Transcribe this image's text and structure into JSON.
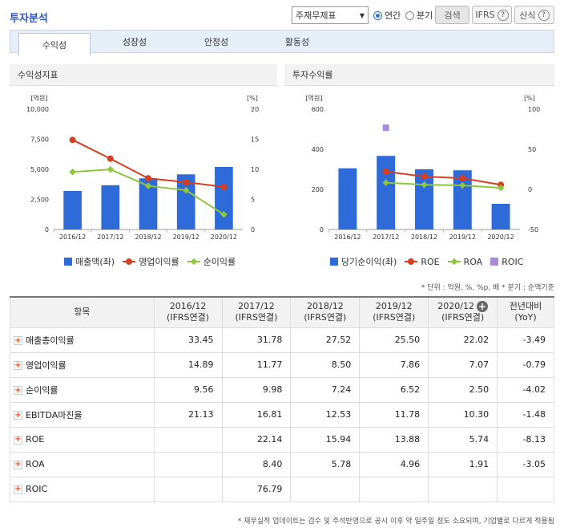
{
  "header": {
    "title": "투자분석",
    "select_value": "주재무제표",
    "radio_annual": "연간",
    "radio_quarter": "분기",
    "search_label": "검색",
    "ifrs_label": "IFRS",
    "formula_label": "산식"
  },
  "tabs": [
    "수익성",
    "성장성",
    "안정성",
    "활동성"
  ],
  "panels": {
    "left_title": "수익성지표",
    "right_title": "투자수익률"
  },
  "chart_data": [
    {
      "type": "bar+line",
      "categories": [
        "2016/12",
        "2017/12",
        "2018/12",
        "2019/12",
        "2020/12"
      ],
      "left_axis_label": "[억원]",
      "right_axis_label": "[%]",
      "left_ticks": [
        "10,000",
        "7,500",
        "5,000",
        "2,500",
        "0"
      ],
      "right_ticks": [
        "20",
        "15",
        "10",
        "5",
        "0"
      ],
      "ylim_left": [
        0,
        10000
      ],
      "ylim_right": [
        0,
        20
      ],
      "series": [
        {
          "name": "매출액(좌)",
          "kind": "bar",
          "axis": "left",
          "color": "#2f6ad9",
          "values": [
            3200,
            3680,
            4250,
            4580,
            5200
          ]
        },
        {
          "name": "영업이익률",
          "kind": "line",
          "axis": "right",
          "color": "#d4401f",
          "marker": "circle",
          "values": [
            14.89,
            11.77,
            8.5,
            7.86,
            7.07
          ]
        },
        {
          "name": "순이익률",
          "kind": "line",
          "axis": "right",
          "color": "#8dc63f",
          "marker": "diamond",
          "values": [
            9.56,
            9.98,
            7.24,
            6.52,
            2.5
          ]
        }
      ]
    },
    {
      "type": "bar+line",
      "categories": [
        "2016/12",
        "2017/12",
        "2018/12",
        "2019/12",
        "2020/12"
      ],
      "left_axis_label": "[억원]",
      "right_axis_label": "[%]",
      "left_ticks": [
        "600",
        "400",
        "200",
        "0"
      ],
      "right_ticks": [
        "100",
        "50",
        "0",
        "-50"
      ],
      "ylim_left": [
        0,
        600
      ],
      "ylim_right": [
        -50,
        100
      ],
      "series": [
        {
          "name": "당기순이익(좌)",
          "kind": "bar",
          "axis": "left",
          "color": "#2f6ad9",
          "values": [
            305,
            367,
            300,
            295,
            128
          ]
        },
        {
          "name": "ROE",
          "kind": "line",
          "axis": "right",
          "color": "#d4401f",
          "marker": "circle",
          "values": [
            null,
            22.14,
            15.94,
            13.88,
            5.74
          ]
        },
        {
          "name": "ROA",
          "kind": "line",
          "axis": "right",
          "color": "#8dc63f",
          "marker": "diamond",
          "values": [
            null,
            8.4,
            5.78,
            4.96,
            1.91
          ]
        },
        {
          "name": "ROIC",
          "kind": "marker",
          "axis": "right",
          "color": "#a98ad8",
          "marker": "square",
          "values": [
            null,
            76.79,
            null,
            null,
            null
          ]
        }
      ]
    }
  ],
  "unit_note": "* 단위 : 억원, %, %p, 배  * 분기 : 순액기준",
  "table": {
    "header_item": "항목",
    "columns": [
      {
        "year": "2016/12",
        "basis": "(IFRS연결)"
      },
      {
        "year": "2017/12",
        "basis": "(IFRS연결)"
      },
      {
        "year": "2018/12",
        "basis": "(IFRS연결)"
      },
      {
        "year": "2019/12",
        "basis": "(IFRS연결)"
      },
      {
        "year": "2020/12",
        "basis": "(IFRS연결)"
      }
    ],
    "yoy_header": [
      "전년대비",
      "(YoY)"
    ],
    "rows": [
      {
        "label": "매출총이익률",
        "values": [
          "33.45",
          "31.78",
          "27.52",
          "25.50",
          "22.02"
        ],
        "yoy": "-3.49"
      },
      {
        "label": "영업이익률",
        "values": [
          "14.89",
          "11.77",
          "8.50",
          "7.86",
          "7.07"
        ],
        "yoy": "-0.79"
      },
      {
        "label": "순이익률",
        "values": [
          "9.56",
          "9.98",
          "7.24",
          "6.52",
          "2.50"
        ],
        "yoy": "-4.02"
      },
      {
        "label": "EBITDA마진율",
        "values": [
          "21.13",
          "16.81",
          "12.53",
          "11.78",
          "10.30"
        ],
        "yoy": "-1.48"
      },
      {
        "label": "ROE",
        "values": [
          "",
          "22.14",
          "15.94",
          "13.88",
          "5.74"
        ],
        "yoy": "-8.13"
      },
      {
        "label": "ROA",
        "values": [
          "",
          "8.40",
          "5.78",
          "4.96",
          "1.91"
        ],
        "yoy": "-3.05"
      },
      {
        "label": "ROIC",
        "values": [
          "",
          "76.79",
          "",
          "",
          ""
        ],
        "yoy": ""
      }
    ]
  },
  "footnote": "* 재무실적 업데이트는 검수 및 주석반영으로 공시 이후 약 일주일 정도 소요되며, 기업별로 다르게 적용됨"
}
